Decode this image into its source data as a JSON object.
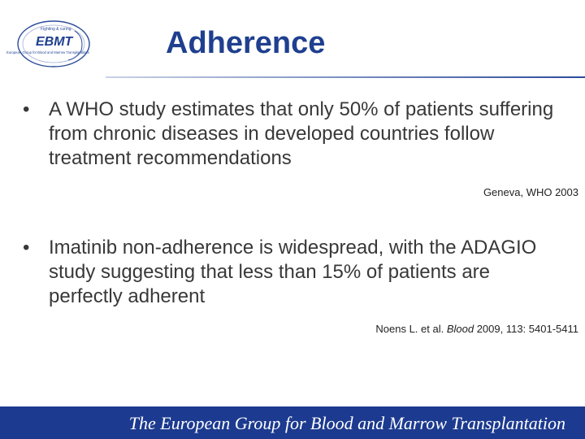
{
  "logo": {
    "text": "EBMT",
    "tagline": "Fighting & curing",
    "subtext": "European Group for Blood and Marrow Transplantation",
    "color": "#1f3f8f"
  },
  "title": "Adherence",
  "bullets": [
    {
      "marker": "•",
      "text": "A WHO study estimates that only 50% of patients suffering from chronic diseases in developed countries follow treatment recommendations",
      "citation": "Geneva, WHO 2003"
    },
    {
      "marker": "•",
      "text": "Imatinib non-adherence is widespread, with the ADAGIO study suggesting that less than 15% of patients are perfectly adherent",
      "citation_prefix": "Noens L. et al. ",
      "citation_journal": "Blood",
      "citation_suffix": " 2009, 113: 5401-5411"
    }
  ],
  "footer": {
    "text": "The European Group for Blood and Marrow Transplantation",
    "color": "#1c3a8f"
  }
}
